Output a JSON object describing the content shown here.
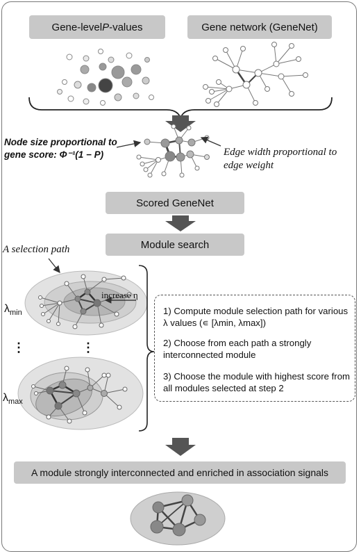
{
  "inputs": {
    "pvalues_label_pre": "Gene-level ",
    "pvalues_label_ital": "P",
    "pvalues_label_post": "-values",
    "genenet_label": "Gene network (GeneNet)"
  },
  "annotations": {
    "node_size_line1": "Node size proportional to",
    "node_size_line2": "gene score: Φ⁻¹(1 − P)",
    "edge_width_line1": "Edge width proportional to",
    "edge_width_line2": "edge weight",
    "selection_path": "A selection path",
    "increase_eta": "increase η"
  },
  "process": {
    "scored_genenet": "Scored GeneNet",
    "module_search": "Module search",
    "result": "A module strongly interconnected and enriched in association signals"
  },
  "lambda": {
    "symbol": "λ",
    "min_sub": "min",
    "max_sub": "max",
    "dots": "⋮"
  },
  "steps": [
    "1)  Compute module selection path for various λ values (∊ [λmin, λmax])",
    "2) Choose from each path a strongly interconnected module",
    "3) Choose the module with highest score from all modules selected at step 2"
  ],
  "colors": {
    "box": "#c8c8c8",
    "arrow": "#555555",
    "frame": "#777777"
  }
}
